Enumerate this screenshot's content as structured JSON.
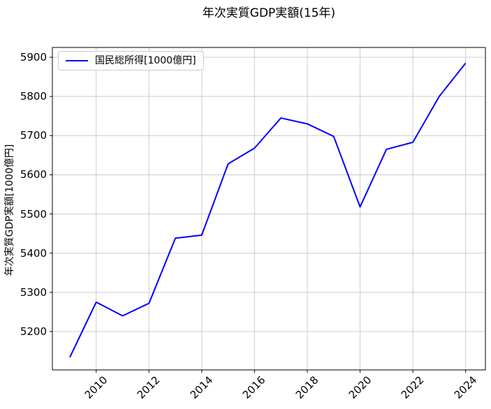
{
  "title": "年次実質GDP実額(15年)",
  "legend": {
    "label": "国民総所得[1000億円]"
  },
  "chart_data": {
    "type": "line",
    "title": "年次実質GDP実額(15年)",
    "xlabel": "",
    "ylabel": "年次実質GDP実額[1000億円]",
    "x": [
      2009,
      2010,
      2011,
      2012,
      2013,
      2014,
      2015,
      2016,
      2017,
      2018,
      2019,
      2020,
      2021,
      2022,
      2023,
      2024
    ],
    "series": [
      {
        "name": "国民総所得[1000億円]",
        "color": "#0000ff",
        "values": [
          5134,
          5275,
          5240,
          5272,
          5438,
          5446,
          5628,
          5668,
          5745,
          5730,
          5698,
          5518,
          5665,
          5683,
          5800,
          5885
        ]
      }
    ],
    "xticks": [
      2010,
      2012,
      2014,
      2016,
      2018,
      2020,
      2022,
      2024
    ],
    "yticks": [
      5200,
      5300,
      5400,
      5500,
      5600,
      5700,
      5800,
      5900
    ],
    "xlim": [
      2008.34,
      2024.75
    ],
    "ylim": [
      5102,
      5925
    ],
    "grid": true,
    "grid_color": "#cccccc",
    "spine_color": "#000000",
    "background": "#ffffff",
    "line_width": 2,
    "legend_position": "upper left"
  }
}
